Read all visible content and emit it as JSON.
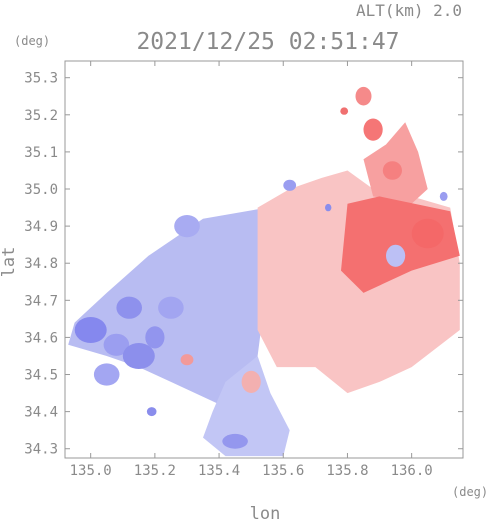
{
  "header": {
    "altitude": "ALT(km) 2.0",
    "timestamp": "2021/12/25 02:51:47",
    "y_unit": "(deg)",
    "x_unit": "(deg)"
  },
  "chart_data": {
    "type": "heatmap",
    "title": "2021/12/25 02:51:47",
    "xlabel": "lon",
    "ylabel": "lat",
    "x_unit": "(deg)",
    "y_unit": "(deg)",
    "altitude_label": "ALT(km) 2.0",
    "xlim": [
      134.92,
      136.16
    ],
    "ylim": [
      34.275,
      35.345
    ],
    "x_ticks": [
      135.0,
      135.2,
      135.4,
      135.6,
      135.8,
      136.0
    ],
    "x_tick_labels": [
      "135.0",
      "135.2",
      "135.4",
      "135.6",
      "135.8",
      "136.0"
    ],
    "y_ticks": [
      34.3,
      34.4,
      34.5,
      34.6,
      34.7,
      34.8,
      34.9,
      35.0,
      35.1,
      35.2,
      35.3
    ],
    "y_tick_labels": [
      "34.3",
      "34.4",
      "34.5",
      "34.6",
      "34.7",
      "34.8",
      "34.9",
      "35.0",
      "35.1",
      "35.2",
      "35.3"
    ],
    "grid": false,
    "colors": {
      "approaching": "#8a8cf0",
      "receding": "#f56a6a",
      "frame": "#999999"
    },
    "regions": [
      {
        "name": "west-echo",
        "color": "#b8bcf2",
        "points": [
          [
            135.55,
            34.95
          ],
          [
            135.35,
            34.92
          ],
          [
            135.18,
            34.82
          ],
          [
            135.05,
            34.72
          ],
          [
            134.95,
            34.64
          ],
          [
            134.93,
            34.58
          ],
          [
            135.05,
            34.55
          ],
          [
            135.15,
            34.52
          ],
          [
            135.25,
            34.48
          ],
          [
            135.4,
            34.42
          ],
          [
            135.52,
            34.55
          ],
          [
            135.55,
            34.75
          ]
        ]
      },
      {
        "name": "south-echo",
        "color": "#c2c6f5",
        "points": [
          [
            135.52,
            34.55
          ],
          [
            135.42,
            34.48
          ],
          [
            135.38,
            34.4
          ],
          [
            135.35,
            34.33
          ],
          [
            135.42,
            34.28
          ],
          [
            135.6,
            34.28
          ],
          [
            135.62,
            34.35
          ],
          [
            135.56,
            34.45
          ]
        ]
      },
      {
        "name": "east-echo",
        "color": "#f9c4c4",
        "points": [
          [
            135.52,
            34.95
          ],
          [
            135.62,
            35.0
          ],
          [
            135.72,
            35.03
          ],
          [
            135.8,
            35.05
          ],
          [
            135.88,
            35.0
          ],
          [
            136.0,
            34.98
          ],
          [
            136.12,
            34.95
          ],
          [
            136.15,
            34.8
          ],
          [
            136.15,
            34.62
          ],
          [
            136.0,
            34.52
          ],
          [
            135.9,
            34.48
          ],
          [
            135.8,
            34.45
          ],
          [
            135.7,
            34.52
          ],
          [
            135.58,
            34.52
          ],
          [
            135.52,
            34.62
          ]
        ]
      },
      {
        "name": "northeast-echo",
        "color": "#f7a0a0",
        "points": [
          [
            135.85,
            35.08
          ],
          [
            135.92,
            35.12
          ],
          [
            135.98,
            35.18
          ],
          [
            136.02,
            35.1
          ],
          [
            136.05,
            35.0
          ],
          [
            136.0,
            34.96
          ],
          [
            135.88,
            34.98
          ]
        ]
      },
      {
        "name": "core-echo",
        "color": "#f47070",
        "points": [
          [
            135.8,
            34.96
          ],
          [
            135.9,
            34.98
          ],
          [
            136.12,
            34.94
          ],
          [
            136.15,
            34.82
          ],
          [
            136.0,
            34.78
          ],
          [
            135.85,
            34.72
          ],
          [
            135.78,
            34.78
          ]
        ]
      }
    ],
    "cells": [
      {
        "lon": 135.0,
        "lat": 34.62,
        "rlon": 0.05,
        "rlat": 0.035,
        "color": "#8588ee"
      },
      {
        "lon": 135.08,
        "lat": 34.58,
        "rlon": 0.04,
        "rlat": 0.03,
        "color": "#9b9ef0"
      },
      {
        "lon": 135.15,
        "lat": 34.55,
        "rlon": 0.05,
        "rlat": 0.035,
        "color": "#8c8fec"
      },
      {
        "lon": 135.05,
        "lat": 34.5,
        "rlon": 0.04,
        "rlat": 0.03,
        "color": "#a3a6f2"
      },
      {
        "lon": 135.2,
        "lat": 34.6,
        "rlon": 0.03,
        "rlat": 0.03,
        "color": "#9295ee"
      },
      {
        "lon": 135.25,
        "lat": 34.68,
        "rlon": 0.04,
        "rlat": 0.03,
        "color": "#a2a5f1"
      },
      {
        "lon": 135.12,
        "lat": 34.68,
        "rlon": 0.04,
        "rlat": 0.03,
        "color": "#8e91ed"
      },
      {
        "lon": 135.3,
        "lat": 34.9,
        "rlon": 0.04,
        "rlat": 0.03,
        "color": "#a8abf2"
      },
      {
        "lon": 135.45,
        "lat": 34.32,
        "rlon": 0.04,
        "rlat": 0.02,
        "color": "#9497ee"
      },
      {
        "lon": 135.19,
        "lat": 34.4,
        "rlon": 0.015,
        "rlat": 0.012,
        "color": "#8a8dec"
      },
      {
        "lon": 135.88,
        "lat": 35.16,
        "rlon": 0.03,
        "rlat": 0.03,
        "color": "#f57676"
      },
      {
        "lon": 135.94,
        "lat": 35.05,
        "rlon": 0.03,
        "rlat": 0.025,
        "color": "#f58080"
      },
      {
        "lon": 135.85,
        "lat": 35.25,
        "rlon": 0.025,
        "rlat": 0.025,
        "color": "#f58a8a"
      },
      {
        "lon": 135.79,
        "lat": 35.21,
        "rlon": 0.012,
        "rlat": 0.01,
        "color": "#f07070"
      },
      {
        "lon": 136.05,
        "lat": 34.88,
        "rlon": 0.05,
        "rlat": 0.04,
        "color": "#f46868"
      },
      {
        "lon": 135.95,
        "lat": 34.82,
        "rlon": 0.03,
        "rlat": 0.03,
        "color": "#bcc0f5"
      },
      {
        "lon": 135.62,
        "lat": 35.01,
        "rlon": 0.02,
        "rlat": 0.015,
        "color": "#9a9df0"
      },
      {
        "lon": 135.74,
        "lat": 34.95,
        "rlon": 0.01,
        "rlat": 0.01,
        "color": "#8a8dec"
      },
      {
        "lon": 136.1,
        "lat": 34.98,
        "rlon": 0.012,
        "rlat": 0.012,
        "color": "#9a9df0"
      },
      {
        "lon": 135.5,
        "lat": 34.48,
        "rlon": 0.03,
        "rlat": 0.03,
        "color": "#f3b0b0"
      },
      {
        "lon": 135.3,
        "lat": 34.54,
        "rlon": 0.02,
        "rlat": 0.015,
        "color": "#f29a9a"
      }
    ]
  }
}
